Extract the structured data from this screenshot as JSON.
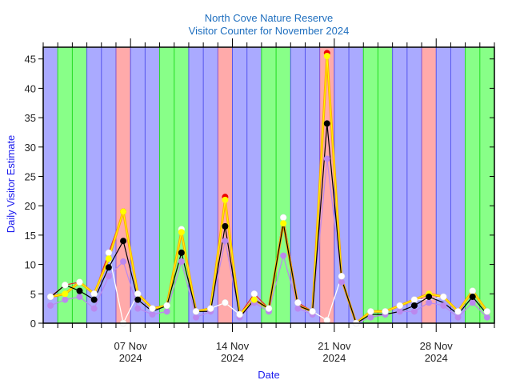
{
  "chart_data": {
    "type": "line",
    "title": "North Cove Nature Reserve",
    "subtitle": "Visitor Counter for November 2024",
    "xlabel": "Date",
    "ylabel": "Daily Visitor Estimate",
    "ylim": [
      0,
      47
    ],
    "yticks": [
      0,
      5,
      10,
      15,
      20,
      25,
      30,
      35,
      40,
      45
    ],
    "xrange_days": [
      "2024-11-01",
      "2024-12-02"
    ],
    "xtick_labels": [
      {
        "day": 7,
        "line1": "07 Nov",
        "line2": "2024"
      },
      {
        "day": 14,
        "line1": "14 Nov",
        "line2": "2024"
      },
      {
        "day": 21,
        "line1": "21 Nov",
        "line2": "2024"
      },
      {
        "day": 28,
        "line1": "28 Nov",
        "line2": "2024"
      }
    ],
    "grid": false,
    "legend": "none",
    "day_bands": {
      "colors": {
        "weekday": "#aaaaff",
        "weekend": "#88ff88",
        "wednesday": "#ffaaaa"
      },
      "edge_colors": {
        "weekday": "#5555ee",
        "weekend": "#22dd22",
        "wednesday": "#8855cc"
      },
      "types": [
        "weekday",
        "weekend",
        "weekend",
        "weekday",
        "weekday",
        "wednesday",
        "weekday",
        "weekday",
        "weekend",
        "weekend",
        "weekday",
        "weekday",
        "wednesday",
        "weekday",
        "weekday",
        "weekend",
        "weekend",
        "weekday",
        "weekday",
        "wednesday",
        "weekday",
        "weekday",
        "weekend",
        "weekend",
        "weekday",
        "weekday",
        "wednesday",
        "weekday",
        "weekday",
        "weekend",
        "weekend"
      ]
    },
    "dates": [
      "2024-11-01",
      "2024-11-02",
      "2024-11-03",
      "2024-11-04",
      "2024-11-05",
      "2024-11-06",
      "2024-11-07",
      "2024-11-08",
      "2024-11-09",
      "2024-11-10",
      "2024-11-11",
      "2024-11-12",
      "2024-11-13",
      "2024-11-14",
      "2024-11-15",
      "2024-11-16",
      "2024-11-17",
      "2024-11-18",
      "2024-11-19",
      "2024-11-20",
      "2024-11-21",
      "2024-11-22",
      "2024-11-23",
      "2024-11-24",
      "2024-11-25",
      "2024-11-26",
      "2024-11-27",
      "2024-11-28",
      "2024-11-29",
      "2024-11-30",
      "2024-12-01"
    ],
    "series": [
      {
        "name": "purple-series",
        "color": "#bb88ee",
        "line_color": "#bb88ee",
        "values": [
          3,
          4,
          4.5,
          2.5,
          8,
          10.5,
          2.5,
          1.5,
          2,
          10.5,
          1,
          2,
          14,
          1,
          3.5,
          2,
          11.5,
          2.5,
          1.5,
          28,
          7,
          0,
          1,
          1.5,
          2,
          2,
          3.5,
          3,
          1,
          3.5,
          1
        ]
      },
      {
        "name": "white-series",
        "color": "#ffffff",
        "line_color": "#ffffff",
        "values": [
          4.5,
          6.5,
          7,
          5,
          12,
          0,
          5,
          2.5,
          3,
          16,
          2,
          2.5,
          3.5,
          1.5,
          5,
          2.5,
          18,
          3.5,
          2,
          0.5,
          8,
          0,
          2,
          2,
          3,
          4,
          4,
          4.5,
          2,
          5.5,
          2
        ]
      },
      {
        "name": "red-series",
        "color": "#ee0000",
        "line_color": "#dd2222",
        "values": [
          4.5,
          6.5,
          7,
          5,
          12,
          19,
          5,
          2.5,
          3,
          16,
          2,
          2.5,
          21.5,
          1.5,
          5,
          2.5,
          18,
          3.5,
          2,
          46,
          8,
          0,
          2,
          2,
          3,
          4,
          5,
          4.5,
          2,
          5.5,
          2
        ]
      },
      {
        "name": "yellow-series",
        "color": "#ffff00",
        "line_color": "#ffaa00",
        "values": [
          4.5,
          5,
          7,
          5,
          11,
          19,
          5,
          2.5,
          3,
          15.5,
          2,
          2.5,
          21,
          1.5,
          4,
          2.5,
          17,
          3,
          2,
          45.5,
          7.5,
          0,
          2,
          2,
          3,
          4,
          5,
          4.5,
          2,
          5.5,
          2
        ]
      },
      {
        "name": "black-series",
        "color": "#000000",
        "line_color": "#000000",
        "values": [
          4.4,
          6.5,
          5.5,
          4,
          9.5,
          14,
          4,
          2,
          3,
          12,
          2,
          2,
          16.5,
          1,
          4,
          2.5,
          17,
          3,
          2,
          34,
          7.5,
          0,
          1.5,
          1.5,
          2,
          3,
          4.5,
          3.5,
          1.5,
          4.5,
          1.5
        ]
      }
    ],
    "markers": {
      "purple-series": [
        0,
        1,
        2,
        3,
        4,
        5,
        6,
        7,
        8,
        9,
        10,
        11,
        12,
        13,
        14,
        15,
        16,
        17,
        18,
        19,
        20,
        21,
        22,
        23,
        24,
        25,
        26,
        27,
        28,
        29,
        30
      ],
      "white-series": [
        0,
        1,
        2,
        3,
        4,
        5,
        6,
        7,
        8,
        9,
        10,
        11,
        12,
        13,
        14,
        15,
        16,
        17,
        18,
        19,
        20,
        21,
        22,
        23,
        24,
        25,
        27,
        28,
        29,
        30
      ],
      "red-series": [
        5,
        12,
        19
      ],
      "yellow-series": [
        1,
        4,
        5,
        9,
        12,
        14,
        16,
        19,
        26
      ],
      "black-series": [
        2,
        3,
        4,
        5,
        6,
        9,
        12,
        19,
        25,
        26,
        29
      ]
    }
  }
}
